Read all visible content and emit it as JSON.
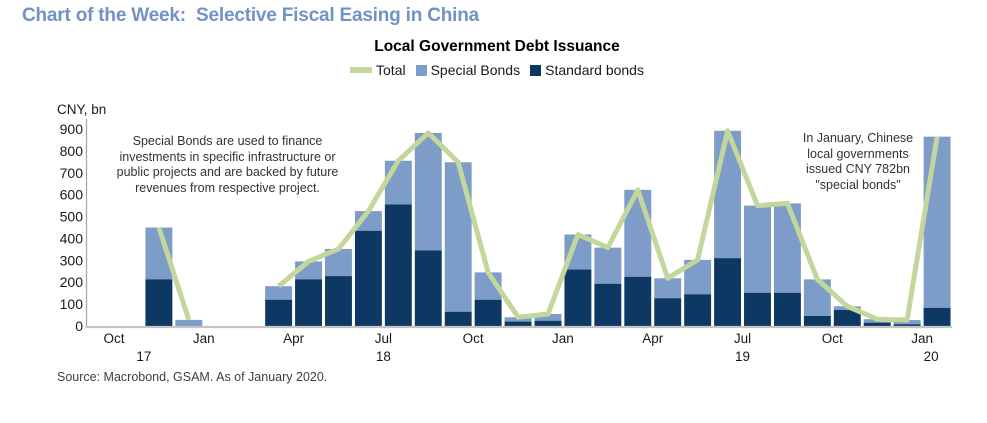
{
  "page": {
    "title": "Chart of the Week:  Selective Fiscal Easing in China",
    "source": "Source: Macrobond, GSAM. As of January 2020."
  },
  "chart": {
    "subtitle": "Local Government Debt Issuance",
    "unit_label": "CNY, bn",
    "legend": [
      {
        "label": "Total",
        "type": "line",
        "color": "#c3d69b"
      },
      {
        "label": "Special Bonds",
        "type": "square",
        "color": "#7d9cc8"
      },
      {
        "label": "Standard bonds",
        "type": "square",
        "color": "#0d3863"
      }
    ],
    "annotations": {
      "left": "Special Bonds are used to finance\ninvestments in specific infrastructure or\npublic projects and are backed by future\nrevenues from respective project.",
      "right": "In January, Chinese\nlocal governments\nissued CNY 782bn\n\"special bonds\""
    }
  },
  "colors": {
    "title_blue": "#7291c4",
    "special_bonds": "#7d9cc8",
    "standard_bonds": "#0d3863",
    "total_line": "#c3d69b",
    "y_axis_line": "#a8a8a8",
    "x_axis_line": "#c4c4c4"
  },
  "chart_data": {
    "type": "bar",
    "subtype": "stacked-bars-with-line-overlay",
    "title": "Local Government Debt Issuance",
    "ylabel": "CNY, bn",
    "ylim": [
      0,
      900
    ],
    "y_tick_step": 100,
    "grid": false,
    "legend_position": "top",
    "categories": [
      "Oct-17",
      "Nov-17",
      "Dec-17",
      "Jan-18",
      "Feb-18",
      "Mar-18",
      "Apr-18",
      "May-18",
      "Jun-18",
      "Jul-18",
      "Aug-18",
      "Sep-18",
      "Oct-18",
      "Nov-18",
      "Dec-18",
      "Jan-19",
      "Feb-19",
      "Mar-19",
      "Apr-19",
      "May-19",
      "Jun-19",
      "Jul-19",
      "Aug-19",
      "Sep-19",
      "Oct-19",
      "Nov-19",
      "Dec-19",
      "Jan-20"
    ],
    "series": [
      {
        "name": "Standard bonds",
        "type": "bar",
        "stack": true,
        "color": "#0d3863",
        "values": [
          null,
          213,
          0,
          null,
          null,
          120,
          213,
          228,
          435,
          555,
          345,
          65,
          120,
          20,
          24,
          258,
          193,
          225,
          127,
          145,
          310,
          152,
          152,
          46,
          73,
          15,
          8,
          83
        ]
      },
      {
        "name": "Special Bonds",
        "type": "bar",
        "stack": true,
        "color": "#7d9cc8",
        "values": [
          null,
          237,
          28,
          null,
          null,
          62,
          82,
          124,
          90,
          200,
          537,
          683,
          125,
          20,
          31,
          160,
          165,
          397,
          91,
          157,
          582,
          398,
          408,
          167,
          17,
          16,
          19,
          782
        ]
      },
      {
        "name": "Total",
        "type": "line",
        "color": "#c3d69b",
        "values": [
          null,
          450,
          28,
          null,
          null,
          182,
          295,
          352,
          525,
          755,
          882,
          748,
          245,
          40,
          55,
          418,
          358,
          622,
          218,
          302,
          892,
          550,
          560,
          213,
          90,
          31,
          27,
          865
        ]
      }
    ],
    "x_tick_labels": [
      {
        "label": "Oct",
        "month_index": 0
      },
      {
        "label": "Jan",
        "month_index": 3
      },
      {
        "label": "Apr",
        "month_index": 6
      },
      {
        "label": "Jul",
        "month_index": 9
      },
      {
        "label": "Oct",
        "month_index": 12
      },
      {
        "label": "Jan",
        "month_index": 15
      },
      {
        "label": "Apr",
        "month_index": 18
      },
      {
        "label": "Jul",
        "month_index": 21
      },
      {
        "label": "Oct",
        "month_index": 24
      },
      {
        "label": "Jan",
        "month_index": 27
      }
    ],
    "year_labels": [
      {
        "label": "17",
        "month_index": 1
      },
      {
        "label": "18",
        "month_index": 9
      },
      {
        "label": "19",
        "month_index": 21
      },
      {
        "label": "20",
        "month_index": 27.3
      }
    ]
  }
}
